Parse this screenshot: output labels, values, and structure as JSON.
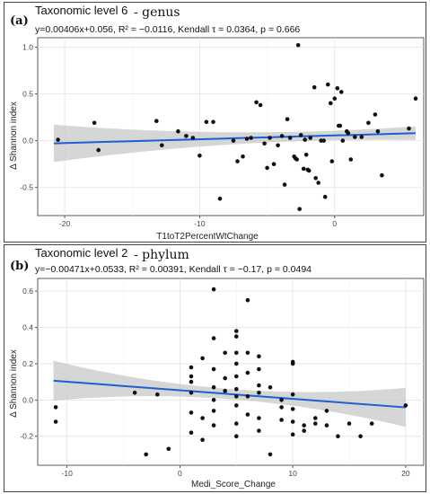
{
  "chart_data": [
    {
      "type": "scatter",
      "panel_letter": "(a)",
      "title": "Taxonomic level 6",
      "title_suffix": "- genus",
      "stats_line": "y=0.00406x+0.056, R² = −0.0116, Kendall τ = 0.0364, p = 0.666",
      "xlabel": "T1toT2PercentWtChange",
      "ylabel": "Δ Shannon index",
      "xlim": [
        -22,
        6.6
      ],
      "ylim": [
        -0.8,
        1.1
      ],
      "xticks": [
        -20,
        -10,
        0
      ],
      "yticks": [
        -0.5,
        0.0,
        0.5,
        1.0
      ],
      "ytick_labels": [
        "-0.5",
        "0.0",
        "0.5",
        "1.0"
      ],
      "grid": true,
      "fit": {
        "slope": 0.00406,
        "intercept": 0.056,
        "x_range": [
          -20.8,
          6.0
        ],
        "band_halfwidth_ends": 0.2,
        "band_halfwidth_min": 0.05,
        "band_center_x": -1.5
      },
      "points": [
        [
          -20.5,
          0.01
        ],
        [
          -17.8,
          0.19
        ],
        [
          -17.5,
          -0.1
        ],
        [
          -13.2,
          0.21
        ],
        [
          -12.8,
          -0.05
        ],
        [
          -11.6,
          0.1
        ],
        [
          -11.0,
          0.05
        ],
        [
          -10.5,
          0.03
        ],
        [
          -10.0,
          -0.16
        ],
        [
          -9.5,
          0.2
        ],
        [
          -9.0,
          0.2
        ],
        [
          -8.5,
          -0.62
        ],
        [
          -7.5,
          0.0
        ],
        [
          -7.2,
          -0.22
        ],
        [
          -6.8,
          -0.17
        ],
        [
          -6.5,
          0.02
        ],
        [
          -6.2,
          0.03
        ],
        [
          -5.8,
          0.41
        ],
        [
          -5.5,
          0.38
        ],
        [
          -5.2,
          -0.03
        ],
        [
          -5.0,
          -0.29
        ],
        [
          -4.8,
          0.03
        ],
        [
          -4.5,
          -0.25
        ],
        [
          -4.2,
          -0.05
        ],
        [
          -3.9,
          0.05
        ],
        [
          -3.7,
          -0.47
        ],
        [
          -3.5,
          0.23
        ],
        [
          -3.3,
          0.03
        ],
        [
          -3.0,
          -0.17
        ],
        [
          -2.9,
          -0.19
        ],
        [
          -2.8,
          -0.2
        ],
        [
          -2.7,
          1.02
        ],
        [
          -2.6,
          -0.73
        ],
        [
          -2.5,
          0.06
        ],
        [
          -2.3,
          -0.3
        ],
        [
          -2.2,
          0.01
        ],
        [
          -2.1,
          -0.15
        ],
        [
          -2.0,
          -0.31
        ],
        [
          -1.9,
          -0.32
        ],
        [
          -1.8,
          0.03
        ],
        [
          -1.5,
          0.57
        ],
        [
          -1.4,
          -0.4
        ],
        [
          -1.2,
          -0.45
        ],
        [
          -1.0,
          0.0
        ],
        [
          -0.8,
          0.0
        ],
        [
          -0.7,
          -0.6
        ],
        [
          -0.5,
          0.6
        ],
        [
          -0.3,
          0.4
        ],
        [
          -0.2,
          -0.22
        ],
        [
          0.0,
          0.45
        ],
        [
          0.2,
          0.56
        ],
        [
          0.3,
          0.16
        ],
        [
          0.4,
          0.16
        ],
        [
          0.5,
          0.52
        ],
        [
          0.6,
          0.0
        ],
        [
          0.9,
          0.1
        ],
        [
          1.0,
          0.08
        ],
        [
          1.2,
          -0.2
        ],
        [
          1.5,
          0.04
        ],
        [
          2.0,
          0.04
        ],
        [
          2.5,
          0.19
        ],
        [
          3.0,
          0.28
        ],
        [
          3.2,
          0.1
        ],
        [
          3.5,
          -0.37
        ],
        [
          5.5,
          0.13
        ],
        [
          6.0,
          0.45
        ]
      ]
    },
    {
      "type": "scatter",
      "panel_letter": "(b)",
      "title": "Taxonomic level 2",
      "title_suffix": "- phylum",
      "stats_line": "y=−0.00471x+0.0533, R² = 0.00391, Kendall τ = −0.17, p = 0.0494",
      "xlabel": "Medi_Score_Change",
      "ylabel": "Δ Shannon index",
      "xlim": [
        -12.6,
        21.6
      ],
      "ylim": [
        -0.36,
        0.67
      ],
      "xticks": [
        -10,
        0,
        10,
        20
      ],
      "yticks": [
        -0.2,
        0.0,
        0.2,
        0.4,
        0.6
      ],
      "ytick_labels": [
        "-0.2",
        "0.0",
        "0.2",
        "0.4",
        "0.6"
      ],
      "grid": true,
      "fit": {
        "slope": -0.00471,
        "intercept": 0.0533,
        "x_range": [
          -11.2,
          20.0
        ],
        "band_halfwidth_ends": 0.11,
        "band_halfwidth_min": 0.028,
        "band_center_x": 4.5
      },
      "points": [
        [
          -11.0,
          -0.04
        ],
        [
          -11.0,
          -0.12
        ],
        [
          -4.0,
          0.04
        ],
        [
          -3.0,
          -0.3
        ],
        [
          -2.0,
          0.03
        ],
        [
          -1.0,
          -0.27
        ],
        [
          1.0,
          0.18
        ],
        [
          1.0,
          0.13
        ],
        [
          1.0,
          0.1
        ],
        [
          1.0,
          0.04
        ],
        [
          1.0,
          -0.07
        ],
        [
          1.0,
          -0.18
        ],
        [
          2.0,
          0.23
        ],
        [
          2.0,
          -0.1
        ],
        [
          2.0,
          -0.22
        ],
        [
          3.0,
          0.61
        ],
        [
          3.0,
          0.34
        ],
        [
          3.0,
          0.17
        ],
        [
          3.0,
          0.07
        ],
        [
          3.0,
          0.0
        ],
        [
          3.0,
          -0.06
        ],
        [
          3.0,
          -0.14
        ],
        [
          4.0,
          0.26
        ],
        [
          4.0,
          0.12
        ],
        [
          4.0,
          0.05
        ],
        [
          5.0,
          0.38
        ],
        [
          5.0,
          0.35
        ],
        [
          5.0,
          0.26
        ],
        [
          5.0,
          0.2
        ],
        [
          5.0,
          0.13
        ],
        [
          5.0,
          0.06
        ],
        [
          5.0,
          0.02
        ],
        [
          5.0,
          -0.03
        ],
        [
          5.0,
          -0.13
        ],
        [
          5.0,
          -0.2
        ],
        [
          6.0,
          0.55
        ],
        [
          6.0,
          0.26
        ],
        [
          6.0,
          0.15
        ],
        [
          6.0,
          0.02
        ],
        [
          6.0,
          -0.08
        ],
        [
          7.0,
          0.24
        ],
        [
          7.0,
          0.17
        ],
        [
          7.0,
          0.08
        ],
        [
          7.0,
          0.04
        ],
        [
          7.0,
          -0.1
        ],
        [
          7.0,
          -0.17
        ],
        [
          8.0,
          0.07
        ],
        [
          8.0,
          -0.3
        ],
        [
          9.0,
          0.0
        ],
        [
          9.0,
          -0.04
        ],
        [
          9.0,
          -0.11
        ],
        [
          10.0,
          0.21
        ],
        [
          10.0,
          0.2
        ],
        [
          10.0,
          0.03
        ],
        [
          10.0,
          -0.05
        ],
        [
          10.0,
          -0.12
        ],
        [
          10.0,
          -0.19
        ],
        [
          11.0,
          -0.14
        ],
        [
          11.0,
          -0.17
        ],
        [
          12.0,
          -0.1
        ],
        [
          12.0,
          -0.13
        ],
        [
          13.0,
          -0.06
        ],
        [
          13.0,
          -0.14
        ],
        [
          14.0,
          -0.2
        ],
        [
          15.0,
          -0.13
        ],
        [
          16.0,
          -0.2
        ],
        [
          17.0,
          -0.13
        ],
        [
          20.0,
          -0.03
        ]
      ]
    }
  ]
}
